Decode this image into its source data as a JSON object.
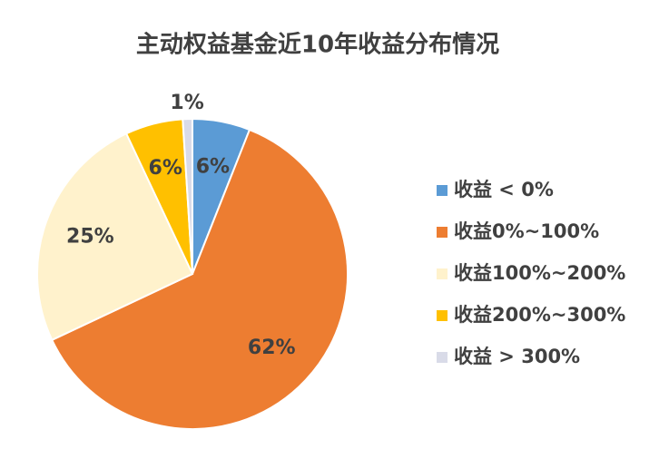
{
  "chart_data": {
    "type": "pie",
    "title": "主动权益基金近10年收益分布情况",
    "categories": [
      "收益 < 0%",
      "收益0%~100%",
      "收益100%~200%",
      "收益200%~300%",
      "收益 > 300%"
    ],
    "values": [
      6,
      62,
      25,
      6,
      1
    ],
    "value_labels": [
      "6%",
      "62%",
      "25%",
      "6%",
      "1%"
    ],
    "colors": [
      "#5b9bd5",
      "#ed7d31",
      "#fff2cc",
      "#ffc000",
      "#d9dbe8"
    ],
    "legend": "right"
  }
}
